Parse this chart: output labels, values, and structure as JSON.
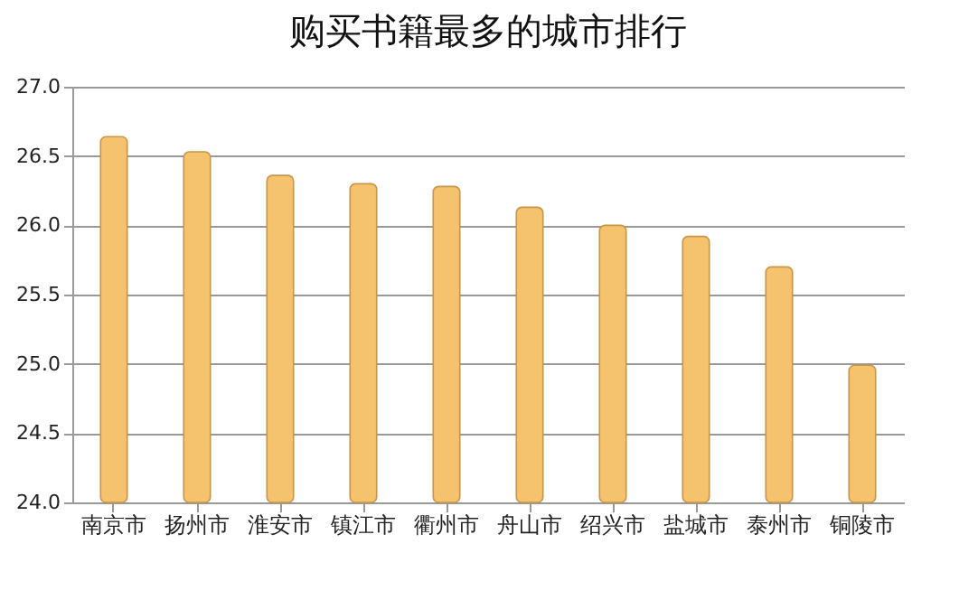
{
  "chart_data": {
    "type": "bar",
    "title": "购买书籍最多的城市排行",
    "categories": [
      "南京市",
      "扬州市",
      "淮安市",
      "镇江市",
      "衢州市",
      "舟山市",
      "绍兴市",
      "盐城市",
      "泰州市",
      "铜陵市"
    ],
    "values": [
      26.64,
      26.53,
      26.36,
      26.3,
      26.28,
      26.13,
      26.0,
      25.92,
      25.7,
      24.99
    ],
    "color": "#f5c36e",
    "ylim": [
      24.0,
      27.0
    ],
    "yticks": [
      {
        "value": 24,
        "label": "24.0"
      },
      {
        "value": 24.5,
        "label": "24.5"
      },
      {
        "value": 25,
        "label": "25.0"
      },
      {
        "value": 25.5,
        "label": "25.5"
      },
      {
        "value": 26,
        "label": "26.0"
      },
      {
        "value": 26.5,
        "label": "26.5"
      },
      {
        "value": 27,
        "label": "27.0"
      }
    ],
    "grid": "y"
  }
}
